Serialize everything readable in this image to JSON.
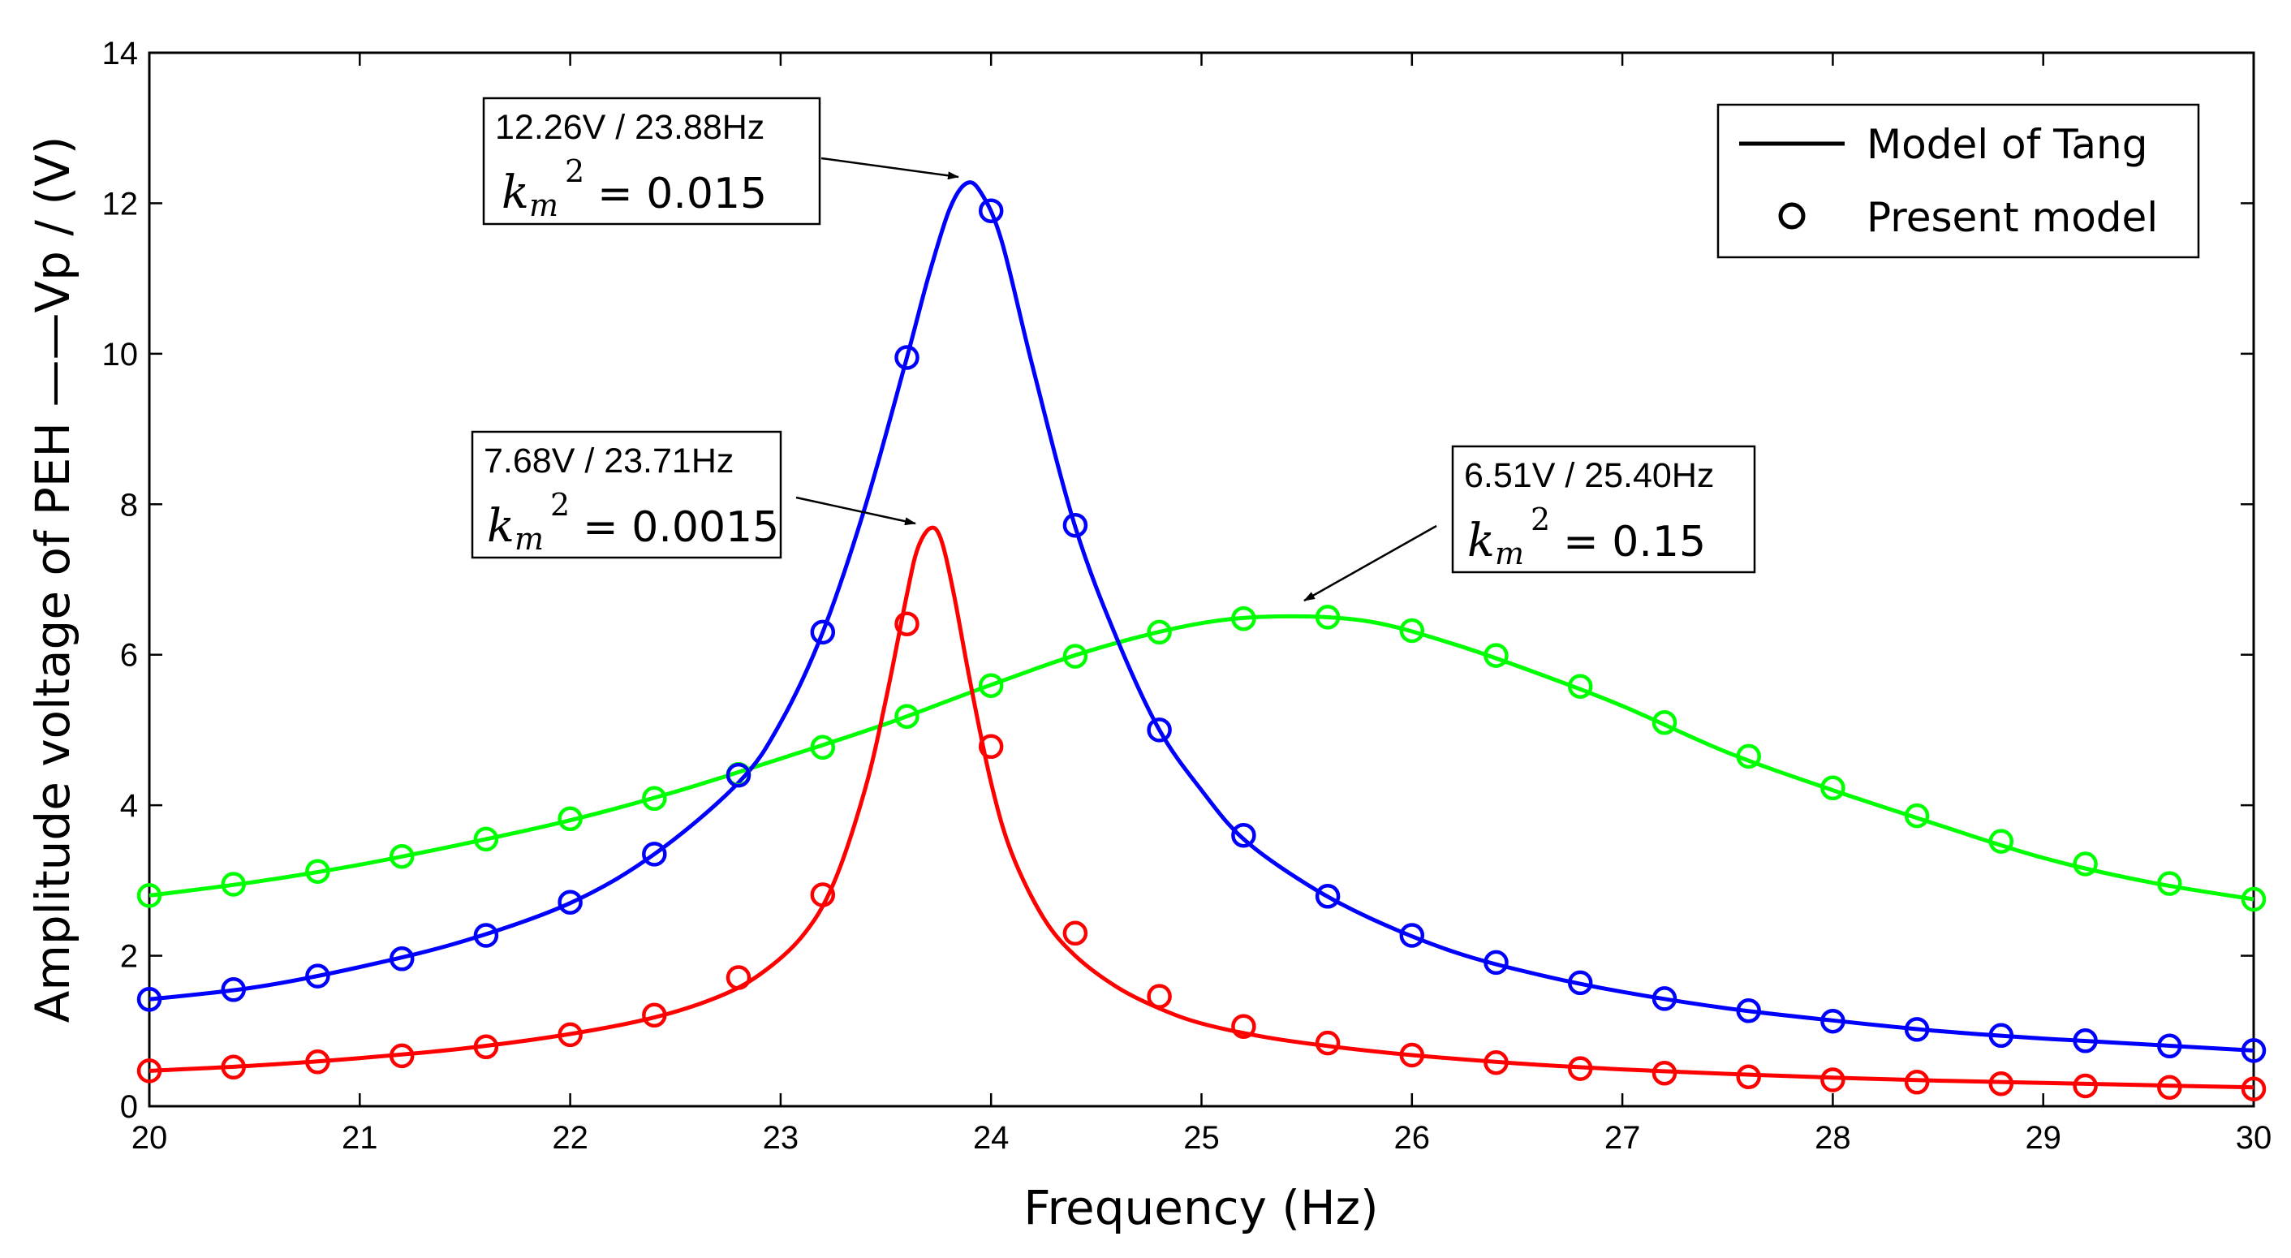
{
  "chart_data": {
    "type": "line",
    "title": "",
    "xlabel": "Frequency (Hz)",
    "ylabel": "Amplitude voltage of PEH ——Vp / (V)",
    "xlim": [
      20,
      30
    ],
    "ylim": [
      0,
      14
    ],
    "xticks": [
      "20",
      "21",
      "22",
      "23",
      "24",
      "25",
      "26",
      "27",
      "28",
      "29",
      "30"
    ],
    "yticks": [
      "0",
      "2",
      "4",
      "6",
      "8",
      "10",
      "12",
      "14"
    ],
    "grid": false,
    "legend_position": "top-right",
    "legend": [
      {
        "label": "Model of Tang",
        "marker": "line"
      },
      {
        "label": "Present model",
        "marker": "circle"
      }
    ],
    "series": [
      {
        "name": "k_m^2 = 0.0015",
        "color": "#ff0000",
        "peak": {
          "x": 23.71,
          "y": 7.68
        },
        "curve_x": [
          20,
          20.5,
          21,
          21.5,
          22,
          22.4,
          22.7,
          22.9,
          23.1,
          23.25,
          23.4,
          23.5,
          23.6,
          23.65,
          23.71,
          23.76,
          23.82,
          23.9,
          24.0,
          24.1,
          24.25,
          24.4,
          24.6,
          24.8,
          25.0,
          25.3,
          25.6,
          26.0,
          26.5,
          27,
          27.5,
          28,
          28.5,
          29,
          29.5,
          30
        ],
        "curve_y": [
          0.47,
          0.54,
          0.64,
          0.77,
          0.96,
          1.18,
          1.45,
          1.75,
          2.25,
          2.95,
          4.2,
          5.4,
          6.8,
          7.4,
          7.68,
          7.55,
          6.85,
          5.65,
          4.3,
          3.35,
          2.5,
          2.0,
          1.58,
          1.3,
          1.1,
          0.92,
          0.8,
          0.68,
          0.57,
          0.49,
          0.43,
          0.38,
          0.34,
          0.31,
          0.28,
          0.25
        ],
        "markers_x": [
          20,
          20.4,
          20.8,
          21.2,
          21.6,
          22,
          22.4,
          22.8,
          23.2,
          23.6,
          24.0,
          24.4,
          24.8,
          25.2,
          25.6,
          26.0,
          26.4,
          26.8,
          27.2,
          27.6,
          28.0,
          28.4,
          28.8,
          29.2,
          29.6,
          30
        ],
        "markers_y": [
          0.47,
          0.52,
          0.59,
          0.67,
          0.79,
          0.95,
          1.21,
          1.71,
          2.81,
          6.41,
          4.78,
          2.3,
          1.46,
          1.06,
          0.84,
          0.68,
          0.58,
          0.5,
          0.44,
          0.39,
          0.35,
          0.32,
          0.3,
          0.27,
          0.25,
          0.23
        ]
      },
      {
        "name": "k_m^2 = 0.015",
        "color": "#0000ff",
        "peak": {
          "x": 23.88,
          "y": 12.26
        },
        "curve_x": [
          20,
          20.5,
          21,
          21.5,
          22,
          22.4,
          22.8,
          23.0,
          23.2,
          23.4,
          23.6,
          23.7,
          23.8,
          23.88,
          23.95,
          24.05,
          24.2,
          24.4,
          24.6,
          24.8,
          25.0,
          25.2,
          25.5,
          25.8,
          26.2,
          26.6,
          27,
          27.5,
          28,
          28.5,
          29,
          29.5,
          30
        ],
        "curve_y": [
          1.42,
          1.58,
          1.85,
          2.2,
          2.7,
          3.35,
          4.3,
          5.1,
          6.3,
          7.95,
          9.95,
          11.0,
          11.9,
          12.26,
          12.15,
          11.5,
          9.8,
          7.7,
          6.2,
          5.0,
          4.2,
          3.55,
          2.95,
          2.5,
          2.05,
          1.75,
          1.52,
          1.3,
          1.14,
          1.0,
          0.9,
          0.82,
          0.74
        ],
        "markers_x": [
          20,
          20.4,
          20.8,
          21.2,
          21.6,
          22,
          22.4,
          22.8,
          23.2,
          23.6,
          24.0,
          24.4,
          24.8,
          25.2,
          25.6,
          26.0,
          26.4,
          26.8,
          27.2,
          27.6,
          28.0,
          28.4,
          28.8,
          29.2,
          29.6,
          30
        ],
        "markers_y": [
          1.42,
          1.55,
          1.73,
          1.96,
          2.27,
          2.71,
          3.35,
          4.4,
          6.3,
          9.95,
          11.9,
          7.72,
          5.0,
          3.6,
          2.79,
          2.27,
          1.91,
          1.64,
          1.43,
          1.27,
          1.13,
          1.02,
          0.94,
          0.87,
          0.8,
          0.74
        ]
      },
      {
        "name": "k_m^2 = 0.15",
        "color": "#00ff00",
        "peak": {
          "x": 25.4,
          "y": 6.51
        },
        "curve_x": [
          20,
          20.5,
          21,
          21.5,
          22,
          22.5,
          23,
          23.5,
          24,
          24.5,
          25,
          25.4,
          25.8,
          26.2,
          26.6,
          27,
          27.5,
          28,
          28.5,
          29,
          29.5,
          30
        ],
        "curve_y": [
          2.8,
          2.98,
          3.21,
          3.49,
          3.8,
          4.18,
          4.62,
          5.08,
          5.6,
          6.08,
          6.42,
          6.51,
          6.44,
          6.14,
          5.75,
          5.32,
          4.7,
          4.2,
          3.74,
          3.3,
          2.98,
          2.75
        ],
        "markers_x": [
          20,
          20.4,
          20.8,
          21.2,
          21.6,
          22,
          22.4,
          22.8,
          23.2,
          23.6,
          24.0,
          24.4,
          24.8,
          25.2,
          25.6,
          26.0,
          26.4,
          26.8,
          27.2,
          27.6,
          28.0,
          28.4,
          28.8,
          29.2,
          29.6,
          30
        ],
        "markers_y": [
          2.8,
          2.95,
          3.12,
          3.32,
          3.55,
          3.82,
          4.09,
          4.41,
          4.77,
          5.18,
          5.59,
          5.98,
          6.3,
          6.48,
          6.5,
          6.32,
          5.99,
          5.58,
          5.1,
          4.65,
          4.23,
          3.86,
          3.52,
          3.22,
          2.96,
          2.75
        ]
      }
    ],
    "annotations": [
      {
        "line1": "12.26V / 23.88Hz",
        "k_symbol": "k",
        "k_sub": "m",
        "k_sup": "2",
        "value": "= 0.015",
        "target": {
          "x": 23.88,
          "y": 12.26
        }
      },
      {
        "line1": "7.68V / 23.71Hz",
        "k_symbol": "k",
        "k_sub": "m",
        "k_sup": "2",
        "value": "= 0.0015",
        "target": {
          "x": 23.71,
          "y": 7.68
        }
      },
      {
        "line1": "6.51V / 25.40Hz",
        "k_symbol": "k",
        "k_sub": "m",
        "k_sup": "2",
        "value": "= 0.15",
        "target": {
          "x": 25.4,
          "y": 6.51
        }
      }
    ]
  }
}
